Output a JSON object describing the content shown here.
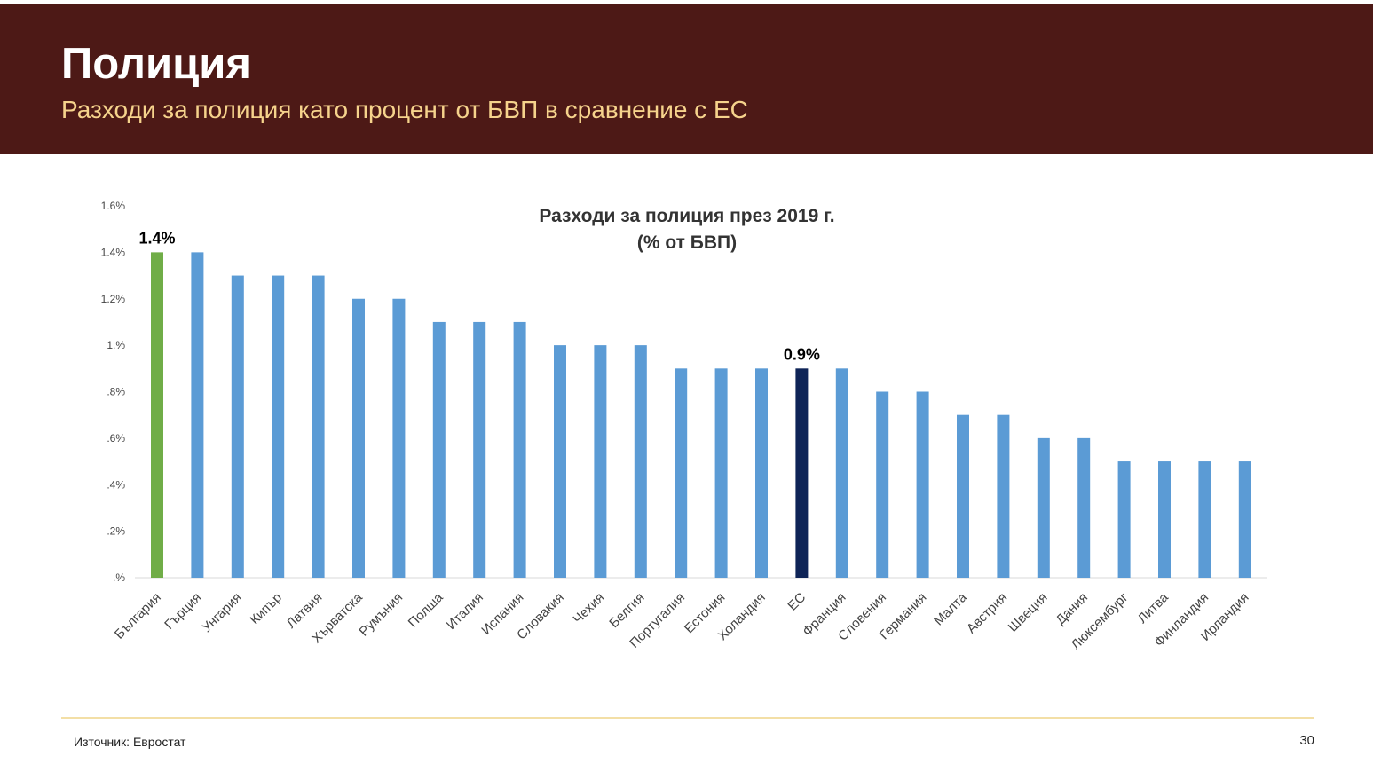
{
  "slide": {
    "title": "Полиция",
    "subtitle": "Разходи за полиция като процент от БВП в сравнение с ЕС",
    "source": "Източник: Евростат",
    "page_number": "30"
  },
  "colors": {
    "header_bg": "#4d1916",
    "subtitle": "#f6d38c",
    "bar_default": "#5b9bd5",
    "bar_bulgaria": "#70ad47",
    "bar_eu": "#0e2457",
    "footer_line": "#f3dfa6"
  },
  "chart_data": {
    "type": "bar",
    "title_line1": "Разходи за полиция през 2019 г.",
    "title_line2": "(% от БВП)",
    "categories": [
      "България",
      "Гърция",
      "Унгария",
      "Кипър",
      "Латвия",
      "Хърватска",
      "Румъния",
      "Полша",
      "Италия",
      "Испания",
      "Словакия",
      "Чехия",
      "Белгия",
      "Португалия",
      "Естония",
      "Холандия",
      "ЕС",
      "Франция",
      "Словения",
      "Германия",
      "Малта",
      "Австрия",
      "Швеция",
      "Дания",
      "Люксембург",
      "Литва",
      "Финландия",
      "Ирландия"
    ],
    "values": [
      1.4,
      1.4,
      1.3,
      1.3,
      1.3,
      1.2,
      1.2,
      1.1,
      1.1,
      1.1,
      1.0,
      1.0,
      1.0,
      0.9,
      0.9,
      0.9,
      0.9,
      0.9,
      0.8,
      0.8,
      0.7,
      0.7,
      0.6,
      0.6,
      0.5,
      0.5,
      0.5,
      0.5
    ],
    "highlight": {
      "България": "bar_bulgaria",
      "ЕС": "bar_eu"
    },
    "data_labels": [
      {
        "category": "България",
        "text": "1.4%"
      },
      {
        "category": "ЕС",
        "text": "0.9%"
      }
    ],
    "y_ticks": [
      {
        "value": 0,
        "label": ".%"
      },
      {
        "value": 0.2,
        "label": ".2%"
      },
      {
        "value": 0.4,
        "label": ".4%"
      },
      {
        "value": 0.6,
        "label": ".6%"
      },
      {
        "value": 0.8,
        "label": ".8%"
      },
      {
        "value": 1.0,
        "label": "1.%"
      },
      {
        "value": 1.2,
        "label": "1.2%"
      },
      {
        "value": 1.4,
        "label": "1.4%"
      },
      {
        "value": 1.6,
        "label": "1.6%"
      }
    ],
    "ylim": [
      0,
      1.6
    ],
    "grid": false,
    "legend": "none"
  }
}
